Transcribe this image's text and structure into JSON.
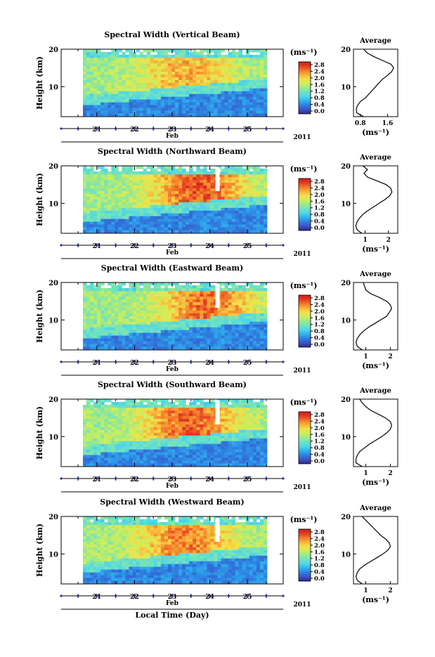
{
  "figure": {
    "xlabel": "Local Time (Day)"
  },
  "chart_data": [
    {
      "type": "heatmap",
      "title": "Spectral Width (Vertical Beam)",
      "ylabel": "Height (km)",
      "ylim": [
        2,
        20
      ],
      "yticks": [
        10,
        20
      ],
      "xticks": [
        "21",
        "22",
        "23",
        "24",
        "25"
      ],
      "month_label": "Feb",
      "year_label": "2011",
      "colorbar": {
        "unit": "(ms⁻¹)",
        "min": 0.0,
        "max": 2.8,
        "ticks": [
          "0.0",
          "0.4",
          "0.8",
          "1.2",
          "1.6",
          "2.0",
          "2.4",
          "2.8"
        ]
      },
      "peak": {
        "center_day": 23.3,
        "base_height": 13,
        "strength": 0.55
      },
      "average": {
        "title": "Average",
        "xlabel": "(ms⁻¹)",
        "xlim": [
          0.6,
          1.9
        ],
        "xticks": [
          "0.8",
          "1.6"
        ],
        "yticks": [
          10,
          20
        ],
        "heights": [
          2,
          3,
          4,
          5,
          6,
          7,
          8,
          9,
          10,
          11,
          12,
          13,
          14,
          15,
          16,
          17,
          18,
          19,
          20
        ],
        "values": [
          0.9,
          0.7,
          0.68,
          0.72,
          0.8,
          0.95,
          1.05,
          1.15,
          1.25,
          1.35,
          1.45,
          1.6,
          1.72,
          1.78,
          1.7,
          1.45,
          1.2,
          1.0,
          0.9
        ]
      }
    },
    {
      "type": "heatmap",
      "title": "Spectral Width (Northward Beam)",
      "ylabel": "Height (km)",
      "ylim": [
        2,
        20
      ],
      "yticks": [
        10,
        20
      ],
      "xticks": [
        "21",
        "22",
        "23",
        "24",
        "25"
      ],
      "month_label": "Feb",
      "year_label": "2011",
      "colorbar": {
        "unit": "(ms⁻¹)",
        "min": 0.0,
        "max": 2.8,
        "ticks": [
          "0.0",
          "0.4",
          "0.8",
          "1.2",
          "1.6",
          "2.0",
          "2.4",
          "2.8"
        ]
      },
      "peak": {
        "center_day": 23.6,
        "base_height": 12.5,
        "strength": 0.85
      },
      "average": {
        "title": "Average",
        "xlabel": "(ms⁻¹)",
        "xlim": [
          0.5,
          2.4
        ],
        "xticks": [
          "1",
          "2"
        ],
        "yticks": [
          10,
          20
        ],
        "heights": [
          2,
          3,
          4,
          5,
          6,
          7,
          8,
          9,
          10,
          11,
          12,
          13,
          14,
          15,
          16,
          17,
          18,
          19,
          20
        ],
        "values": [
          0.85,
          0.65,
          0.6,
          0.65,
          0.75,
          0.9,
          1.1,
          1.35,
          1.6,
          1.85,
          2.05,
          2.15,
          2.1,
          1.9,
          1.5,
          1.1,
          0.95,
          1.1,
          0.9
        ]
      }
    },
    {
      "type": "heatmap",
      "title": "Spectral Width (Eastward Beam)",
      "ylabel": "Height (km)",
      "ylim": [
        2,
        20
      ],
      "yticks": [
        10,
        20
      ],
      "xticks": [
        "21",
        "22",
        "23",
        "24",
        "25"
      ],
      "month_label": "Feb",
      "year_label": "2011",
      "colorbar": {
        "unit": "(ms⁻¹)",
        "min": 0.0,
        "max": 2.8,
        "ticks": [
          "0.0",
          "0.4",
          "0.8",
          "1.2",
          "1.6",
          "2.0",
          "2.4",
          "2.8"
        ]
      },
      "peak": {
        "center_day": 23.8,
        "base_height": 12.5,
        "strength": 0.75
      },
      "average": {
        "title": "Average",
        "xlabel": "(ms⁻¹)",
        "xlim": [
          0.5,
          2.3
        ],
        "xticks": [
          "1",
          "2"
        ],
        "yticks": [
          10,
          20
        ],
        "heights": [
          2,
          3,
          4,
          5,
          6,
          7,
          8,
          9,
          10,
          11,
          12,
          13,
          14,
          15,
          16,
          17,
          18,
          19,
          20
        ],
        "values": [
          0.85,
          0.65,
          0.6,
          0.65,
          0.75,
          0.9,
          1.1,
          1.35,
          1.6,
          1.85,
          1.95,
          2.05,
          2.0,
          1.85,
          1.55,
          1.2,
          1.0,
          0.95,
          0.9
        ]
      }
    },
    {
      "type": "heatmap",
      "title": "Spectral Width (Southward Beam)",
      "ylabel": "Height (km)",
      "ylim": [
        2,
        20
      ],
      "yticks": [
        10,
        20
      ],
      "xticks": [
        "21",
        "22",
        "23",
        "24",
        "25"
      ],
      "month_label": "Feb",
      "year_label": "2011",
      "colorbar": {
        "unit": "(ms⁻¹)",
        "min": 0.0,
        "max": 2.8,
        "ticks": [
          "0.0",
          "0.4",
          "0.8",
          "1.2",
          "1.6",
          "2.0",
          "2.4",
          "2.8"
        ]
      },
      "peak": {
        "center_day": 23.4,
        "base_height": 12.5,
        "strength": 0.8
      },
      "average": {
        "title": "Average",
        "xlabel": "(ms⁻¹)",
        "xlim": [
          0.5,
          2.3
        ],
        "xticks": [
          "1",
          "2"
        ],
        "yticks": [
          10,
          20
        ],
        "heights": [
          2,
          3,
          4,
          5,
          6,
          7,
          8,
          9,
          10,
          11,
          12,
          13,
          14,
          15,
          16,
          17,
          18,
          19,
          20
        ],
        "values": [
          0.85,
          0.6,
          0.6,
          0.65,
          0.75,
          0.95,
          1.15,
          1.4,
          1.65,
          1.85,
          2.0,
          2.05,
          2.0,
          1.8,
          1.5,
          1.2,
          1.0,
          0.85,
          0.75
        ]
      }
    },
    {
      "type": "heatmap",
      "title": "Spectral Width (Westward Beam)",
      "ylabel": "Height (km)",
      "ylim": [
        2,
        20
      ],
      "yticks": [
        10,
        20
      ],
      "xticks": [
        "21",
        "22",
        "23",
        "24",
        "25"
      ],
      "month_label": "Feb",
      "year_label": "2011",
      "colorbar": {
        "unit": "(ms⁻¹)",
        "min": 0.0,
        "max": 2.8,
        "ticks": [
          "0.0",
          "0.4",
          "0.8",
          "1.2",
          "1.6",
          "2.0",
          "2.4",
          "2.8"
        ]
      },
      "peak": {
        "center_day": 23.3,
        "base_height": 12,
        "strength": 0.7
      },
      "average": {
        "title": "Average",
        "xlabel": "(ms⁻¹)",
        "xlim": [
          0.5,
          2.3
        ],
        "xticks": [
          "1",
          "2"
        ],
        "yticks": [
          10,
          20
        ],
        "heights": [
          2,
          3,
          4,
          5,
          6,
          7,
          8,
          9,
          10,
          11,
          12,
          13,
          14,
          15,
          16,
          17,
          18,
          19,
          20
        ],
        "values": [
          0.85,
          0.65,
          0.6,
          0.65,
          0.75,
          0.95,
          1.2,
          1.45,
          1.7,
          1.9,
          2.0,
          1.95,
          1.8,
          1.6,
          1.45,
          1.3,
          1.15,
          1.0,
          0.85
        ]
      }
    }
  ]
}
